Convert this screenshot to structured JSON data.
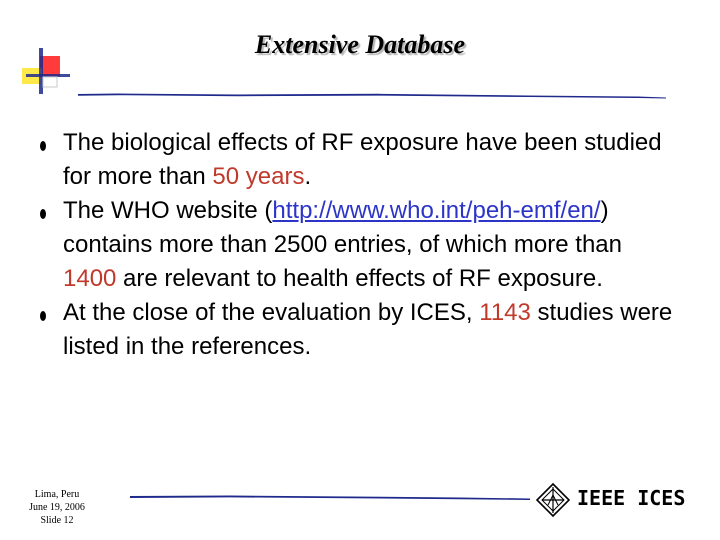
{
  "slide": {
    "title": "Extensive Database",
    "bullets": [
      {
        "parts": [
          {
            "text": "The biological effects of RF exposure have been studied for more than ",
            "style": "normal"
          },
          {
            "text": "50 years",
            "style": "highlight"
          },
          {
            "text": ".",
            "style": "normal"
          }
        ]
      },
      {
        "parts": [
          {
            "text": "The WHO website (",
            "style": "normal"
          },
          {
            "text": "http://www.who.int/peh-emf/en/",
            "style": "link"
          },
          {
            "text": ") contains more than 2500 entries, of which more than ",
            "style": "normal"
          },
          {
            "text": "1400",
            "style": "highlight"
          },
          {
            "text": " are relevant to health effects of RF exposure.",
            "style": "normal"
          }
        ]
      },
      {
        "parts": [
          {
            "text": "At the close of the evaluation by ICES, ",
            "style": "normal"
          },
          {
            "text": "1143",
            "style": "highlight"
          },
          {
            "text": " studies were listed in the references.",
            "style": "normal"
          }
        ]
      }
    ],
    "footer": {
      "location": "Lima, Peru",
      "date": "June 19, 2006",
      "slide_label": "Slide 12"
    },
    "brand": "IEEE ICES"
  },
  "colors": {
    "highlight": "#c0392b",
    "link": "#2d35c8",
    "rule": "#1f2a8c",
    "deco_red": "#ff3b3b",
    "deco_yellow": "#ffe84a",
    "deco_blue": "#1f2a8c"
  },
  "icons": {
    "corner": "square-cluster-icon",
    "logo": "ieee-diamond-logo-icon"
  }
}
